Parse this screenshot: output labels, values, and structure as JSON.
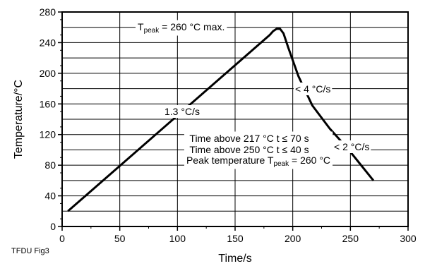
{
  "chart_data": {
    "type": "line",
    "title": "",
    "xlabel": "Time/s",
    "ylabel": "Temperature/°C",
    "xlim": [
      0,
      300
    ],
    "ylim": [
      0,
      280
    ],
    "x_ticks": [
      "0",
      "50",
      "100",
      "150",
      "200",
      "250",
      "300"
    ],
    "y_ticks": [
      "0",
      "40",
      "80",
      "120",
      "160",
      "200",
      "240",
      "280"
    ],
    "grid": true,
    "series": [
      {
        "x": [
          5,
          180,
          183,
          186,
          189,
          192,
          196,
          205,
          217,
          232,
          248,
          270
        ],
        "y": [
          20,
          250,
          255,
          258,
          258,
          252,
          234,
          196,
          158,
          128,
          101,
          60
        ]
      }
    ],
    "annotations": {
      "peak": {
        "t": "T",
        "sub": "peak",
        "rest": " = 260 °C max."
      },
      "rate1": "1.3 °C/s",
      "rate2": "< 4 °C/s",
      "rate3": "< 2 °C/s",
      "line1": "Time above 217 °C t ≤ 70 s",
      "line2": "Time above 250 °C t ≤ 40 s",
      "line3": {
        "pre": "Peak temperature T",
        "sub": "peak",
        "post": " = 260 °C"
      }
    },
    "figure_label": "TFDU Fig3"
  }
}
